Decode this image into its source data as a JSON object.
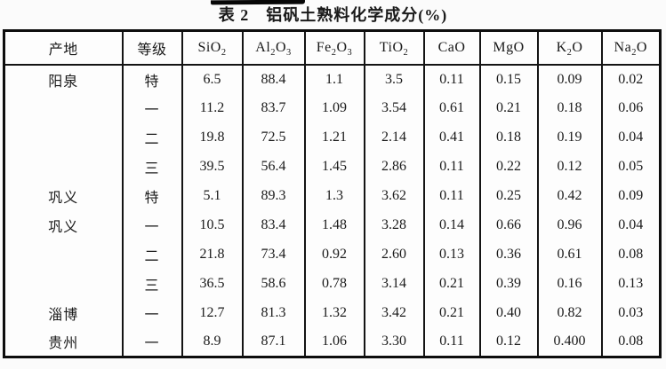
{
  "title": "表 2　铝矾土熟料化学成分(%)",
  "table": {
    "columns": [
      "产地",
      "等级",
      "SiO_2",
      "Al_2O_3",
      "Fe_2O_3",
      "TiO_2",
      "CaO",
      "MgO",
      "K_2O",
      "Na_2O"
    ],
    "rows": [
      [
        "阳泉",
        "特",
        "6.5",
        "88.4",
        "1.1",
        "3.5",
        "0.11",
        "0.15",
        "0.09",
        "0.02"
      ],
      [
        "",
        "一",
        "11.2",
        "83.7",
        "1.09",
        "3.54",
        "0.61",
        "0.21",
        "0.18",
        "0.06"
      ],
      [
        "",
        "二",
        "19.8",
        "72.5",
        "1.21",
        "2.14",
        "0.41",
        "0.18",
        "0.19",
        "0.04"
      ],
      [
        "",
        "三",
        "39.5",
        "56.4",
        "1.45",
        "2.86",
        "0.11",
        "0.22",
        "0.12",
        "0.05"
      ],
      [
        "巩义",
        "特",
        "5.1",
        "89.3",
        "1.3",
        "3.62",
        "0.11",
        "0.25",
        "0.42",
        "0.09"
      ],
      [
        "巩义",
        "一",
        "10.5",
        "83.4",
        "1.48",
        "3.28",
        "0.14",
        "0.66",
        "0.96",
        "0.04"
      ],
      [
        "",
        "二",
        "21.8",
        "73.4",
        "0.92",
        "2.60",
        "0.13",
        "0.36",
        "0.61",
        "0.08"
      ],
      [
        "",
        "三",
        "36.5",
        "58.6",
        "0.78",
        "3.14",
        "0.21",
        "0.39",
        "0.16",
        "0.13"
      ],
      [
        "淄博",
        "一",
        "12.7",
        "81.3",
        "1.32",
        "3.42",
        "0.21",
        "0.40",
        "0.82",
        "0.03"
      ],
      [
        "贵州",
        "一",
        "8.9",
        "87.1",
        "1.06",
        "3.30",
        "0.11",
        "0.12",
        "0.400",
        "0.08"
      ]
    ]
  },
  "colors": {
    "text": "#1a1a1a",
    "border": "#141414",
    "background": "#fbfbfb"
  }
}
